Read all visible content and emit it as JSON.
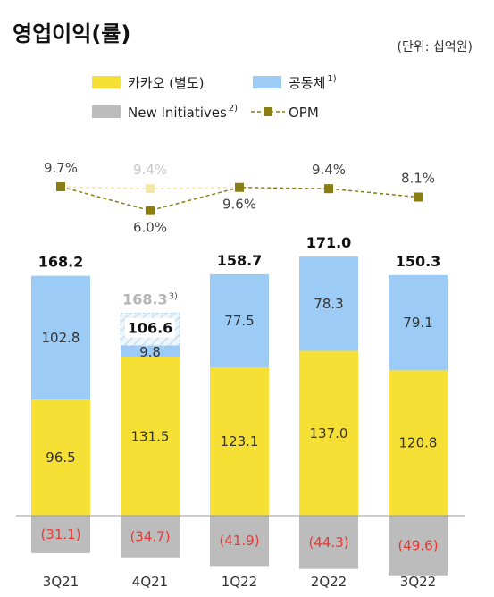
{
  "title": "영업이익(률)",
  "unit": "(단위: 십억원)",
  "legend": [
    {
      "label": "카카오 (별도)",
      "sup": "",
      "color": "#f7e035",
      "kind": "box"
    },
    {
      "label": "공동체",
      "sup": "1)",
      "color": "#9ccbf5",
      "kind": "box"
    },
    {
      "label": "New Initiatives",
      "sup": "2)",
      "color": "#bcbcbc",
      "kind": "box"
    },
    {
      "label": "OPM",
      "sup": "",
      "color": "#8a7d12",
      "kind": "line"
    }
  ],
  "chart_data": {
    "type": "bar",
    "stacked": true,
    "categories": [
      "3Q21",
      "4Q21",
      "1Q22",
      "2Q22",
      "3Q22"
    ],
    "series": [
      {
        "name": "카카오 (별도)",
        "values": [
          96.5,
          131.5,
          123.1,
          137.0,
          120.8
        ],
        "labels": [
          "96.5",
          "131.5",
          "123.1",
          "137.0",
          "120.8"
        ]
      },
      {
        "name": "공동체",
        "values": [
          102.8,
          9.8,
          77.5,
          78.3,
          79.1
        ],
        "labels": [
          "102.8",
          "9.8",
          "77.5",
          "78.3",
          "79.1"
        ]
      },
      {
        "name": "New Initiatives",
        "values": [
          -31.1,
          -34.7,
          -41.9,
          -44.3,
          -49.6
        ],
        "labels": [
          "(31.1)",
          "(34.7)",
          "(41.9)",
          "(44.3)",
          "(49.6)"
        ]
      }
    ],
    "totals": [
      "168.2",
      "106.6",
      "158.7",
      "171.0",
      "150.3"
    ],
    "extra_total": {
      "index": 1,
      "value": 168.3,
      "label": "168.3",
      "sup": "3)"
    },
    "opm": {
      "name": "OPM",
      "values": [
        9.7,
        6.0,
        9.6,
        9.4,
        8.1
      ],
      "labels": [
        "9.7%",
        "6.0%",
        "9.6%",
        "9.4%",
        "8.1%"
      ],
      "alt": {
        "index": 1,
        "value": 9.4,
        "label": "9.4%"
      }
    },
    "colors": {
      "kakao": "#f7e035",
      "community": "#9ccbf5",
      "new": "#bcbcbc",
      "opm": "#8a7d12",
      "opm_alt": "#f3e7a6",
      "negative_text": "#e53935"
    }
  }
}
